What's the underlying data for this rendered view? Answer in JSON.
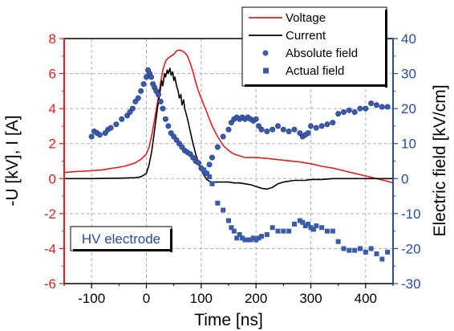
{
  "chart_data": {
    "type": "line",
    "title": "",
    "xlabel": "Time [ns]",
    "ylabel_left": "-U [kV], I [A]",
    "ylabel_right": "Electric field [kV/cm]",
    "xlim": [
      -150,
      450
    ],
    "ylim_left": [
      -6,
      8
    ],
    "ylim_right": [
      -30,
      40
    ],
    "x_ticks": [
      "-100",
      "0",
      "100",
      "200",
      "300",
      "400"
    ],
    "x_tick_values": [
      -100,
      0,
      100,
      200,
      300,
      400
    ],
    "y_left_ticks": [
      "-6",
      "-4",
      "-2",
      "0",
      "2",
      "4",
      "6",
      "8"
    ],
    "y_left_tick_values": [
      -6,
      -4,
      -2,
      0,
      2,
      4,
      6,
      8
    ],
    "y_right_ticks": [
      "-30",
      "-20",
      "-10",
      "0",
      "10",
      "20",
      "30",
      "40"
    ],
    "y_right_tick_values": [
      -30,
      -20,
      -10,
      0,
      10,
      20,
      30,
      40
    ],
    "grid": true,
    "legend_position": "top-right",
    "annotation": "HV electrode",
    "colors": {
      "voltage": "#e02020",
      "current": "#000000",
      "field": "#3a5aaa",
      "left_axis": "#e02020",
      "right_axis": "#2b4a9c"
    },
    "series": [
      {
        "name": "Voltage",
        "axis": "left",
        "style": "line",
        "x": [
          -150,
          -130,
          -100,
          -80,
          -60,
          -40,
          -20,
          -10,
          0,
          5,
          10,
          15,
          20,
          25,
          30,
          35,
          40,
          45,
          50,
          55,
          60,
          65,
          70,
          75,
          80,
          85,
          90,
          95,
          100,
          110,
          120,
          130,
          140,
          150,
          160,
          170,
          180,
          200,
          220,
          250,
          280,
          300,
          320,
          340,
          360,
          380,
          400,
          420,
          440,
          450
        ],
        "y": [
          0.35,
          0.4,
          0.45,
          0.5,
          0.6,
          0.7,
          0.9,
          1.1,
          1.4,
          1.8,
          2.5,
          3.4,
          4.3,
          5.3,
          6.2,
          6.7,
          6.9,
          7.0,
          7.1,
          7.3,
          7.35,
          7.3,
          7.2,
          7.0,
          6.6,
          6.1,
          5.5,
          5.0,
          4.6,
          3.8,
          3.0,
          2.4,
          1.9,
          1.6,
          1.4,
          1.3,
          1.2,
          1.2,
          1.15,
          1.05,
          0.95,
          0.85,
          0.7,
          0.6,
          0.45,
          0.3,
          0.15,
          0.0,
          -0.15,
          -0.25
        ]
      },
      {
        "name": "Current",
        "axis": "left",
        "style": "line",
        "x": [
          -150,
          -100,
          -50,
          -20,
          -10,
          0,
          5,
          10,
          15,
          20,
          25,
          28,
          30,
          33,
          35,
          38,
          40,
          43,
          45,
          48,
          50,
          52,
          55,
          58,
          60,
          63,
          65,
          68,
          70,
          75,
          80,
          85,
          90,
          95,
          100,
          105,
          110,
          115,
          120,
          130,
          140,
          150,
          160,
          170,
          180,
          190,
          200,
          210,
          220,
          230,
          240,
          250,
          260,
          270,
          280,
          290,
          300,
          320,
          340,
          360,
          380,
          400,
          420,
          440,
          450
        ],
        "y": [
          0.0,
          0.0,
          0.02,
          0.05,
          0.1,
          0.3,
          0.8,
          1.6,
          2.8,
          4.0,
          5.0,
          5.6,
          5.3,
          6.0,
          5.8,
          6.2,
          6.0,
          6.3,
          5.9,
          6.1,
          5.6,
          5.8,
          5.3,
          5.0,
          4.6,
          4.8,
          4.2,
          4.5,
          4.0,
          3.4,
          2.7,
          2.0,
          1.4,
          0.9,
          0.5,
          0.2,
          -0.05,
          -0.15,
          -0.2,
          -0.2,
          -0.2,
          -0.2,
          -0.25,
          -0.25,
          -0.3,
          -0.35,
          -0.45,
          -0.55,
          -0.6,
          -0.5,
          -0.3,
          -0.2,
          -0.15,
          -0.1,
          -0.1,
          -0.1,
          -0.05,
          -0.05,
          0.0,
          0.0,
          0.0,
          0.0,
          0.0,
          0.0,
          0.0
        ]
      },
      {
        "name": "Absolute field",
        "axis": "right",
        "style": "circle",
        "x": [
          -100,
          -95,
          -90,
          -85,
          -75,
          -70,
          -65,
          -55,
          -45,
          -35,
          -30,
          -25,
          -20,
          -15,
          -10,
          -5,
          0,
          3,
          6,
          9,
          12,
          15,
          18,
          22,
          26,
          30,
          35,
          40,
          45,
          50,
          55,
          60,
          65,
          70,
          75,
          80,
          85,
          90,
          95,
          100,
          105,
          110,
          115,
          120,
          130,
          140,
          150,
          155,
          160,
          165,
          170,
          175,
          180,
          185,
          190,
          195,
          200,
          205,
          210,
          220,
          230,
          240,
          250,
          260,
          270,
          280,
          285,
          290,
          295,
          300,
          310,
          320,
          330,
          340,
          350,
          360,
          370,
          380,
          390,
          400,
          410,
          420,
          430,
          440
        ],
        "y": [
          12,
          13.5,
          13,
          12.5,
          13,
          14,
          14.5,
          15.5,
          17,
          18,
          19,
          20,
          22,
          23,
          25,
          27,
          29,
          31,
          30,
          29,
          27,
          26,
          25,
          24,
          22,
          20,
          17,
          15,
          13,
          12,
          11,
          10,
          9,
          8,
          7.5,
          7,
          6,
          5,
          4.5,
          3,
          2,
          1.5,
          4,
          6,
          9,
          12,
          14,
          16,
          17,
          17.5,
          17,
          17.5,
          17,
          17.5,
          17,
          16.5,
          17,
          15,
          14,
          13.5,
          14,
          15,
          14,
          13.5,
          14,
          13,
          12,
          12.5,
          13,
          15,
          14.5,
          15,
          15.5,
          16,
          18.5,
          19,
          19.5,
          19,
          20,
          20,
          21.5,
          21,
          20.5,
          20.5
        ]
      },
      {
        "name": "Actual field",
        "axis": "right",
        "style": "square",
        "x": [
          105,
          110,
          115,
          120,
          130,
          140,
          150,
          155,
          160,
          165,
          170,
          175,
          180,
          185,
          190,
          195,
          200,
          205,
          210,
          220,
          230,
          240,
          250,
          260,
          270,
          280,
          285,
          290,
          295,
          300,
          305,
          310,
          320,
          330,
          340,
          350,
          360,
          370,
          380,
          390,
          400,
          410,
          420,
          430,
          440
        ],
        "y": [
          2.5,
          1.5,
          0.5,
          -1.5,
          -7,
          -9,
          -12,
          -14,
          -15,
          -17,
          -16,
          -17,
          -17.5,
          -17.5,
          -17.5,
          -17,
          -17.5,
          -17,
          -16.5,
          -16,
          -14,
          -15,
          -15,
          -15,
          -13,
          -12,
          -12.5,
          -13.5,
          -13,
          -14,
          -14.5,
          -13.5,
          -14,
          -15,
          -15,
          -18,
          -20,
          -20.5,
          -20.5,
          -20,
          -21,
          -20,
          -21.5,
          -23,
          -21
        ]
      }
    ]
  }
}
